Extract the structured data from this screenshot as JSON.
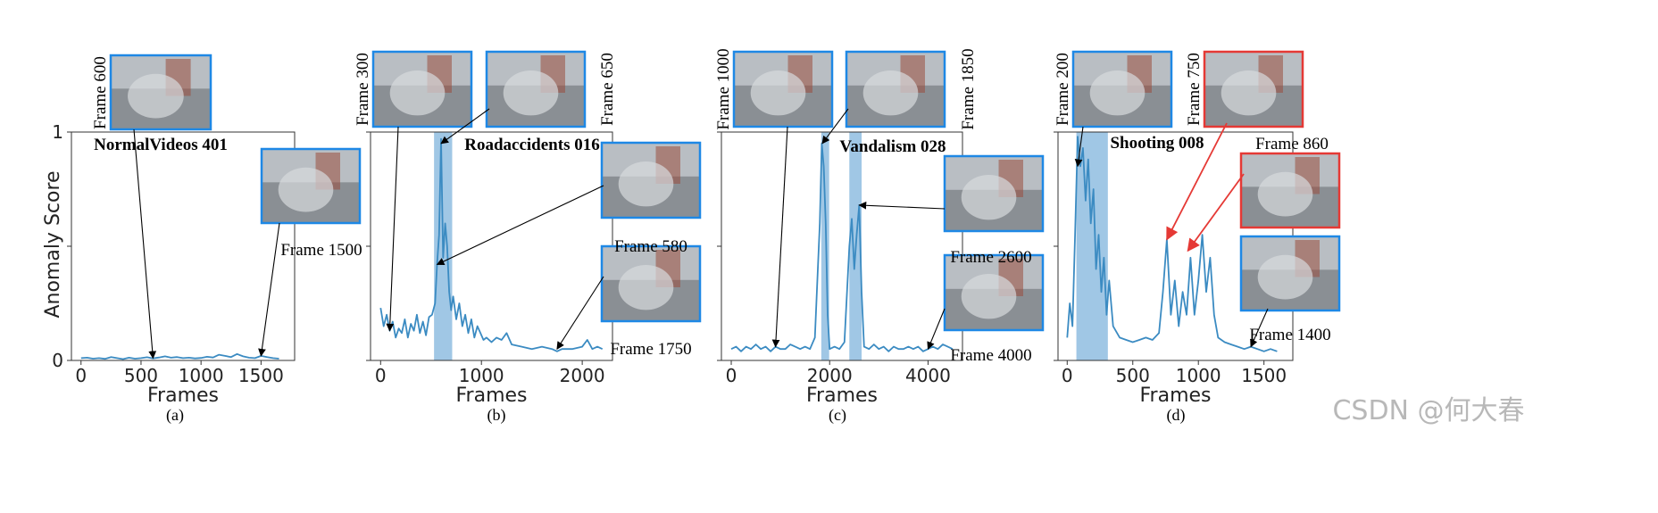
{
  "y_axis_label": "Anomaly Score",
  "watermark": "CSDN @何大春",
  "colors": {
    "line": "#3b8bc2",
    "band": "#8fbde0",
    "thumb_blue": "#1e88e5",
    "thumb_red": "#e53935",
    "arrow_black": "#000000",
    "arrow_red": "#e53935"
  },
  "chart_data": [
    {
      "type": "line",
      "panel": "(a)",
      "title": "NormalVideos 401",
      "xlabel": "Frames",
      "ylabel": "Anomaly Score",
      "xlim": [
        -80,
        1780
      ],
      "ylim": [
        0,
        1
      ],
      "xticks": [
        0,
        500,
        1000,
        1500
      ],
      "yticks": [
        0,
        0.5,
        1
      ],
      "ytick_labels": [
        "0",
        "",
        "1"
      ],
      "anomaly_ranges": [],
      "x": [
        0,
        50,
        100,
        150,
        200,
        250,
        300,
        350,
        400,
        450,
        500,
        550,
        600,
        650,
        700,
        750,
        800,
        850,
        900,
        950,
        1000,
        1050,
        1100,
        1150,
        1200,
        1250,
        1300,
        1350,
        1400,
        1450,
        1500,
        1550,
        1600,
        1650
      ],
      "y": [
        0.01,
        0.012,
        0.008,
        0.01,
        0.007,
        0.015,
        0.01,
        0.006,
        0.012,
        0.008,
        0.01,
        0.014,
        0.009,
        0.013,
        0.018,
        0.012,
        0.015,
        0.01,
        0.012,
        0.009,
        0.011,
        0.016,
        0.013,
        0.025,
        0.02,
        0.015,
        0.028,
        0.018,
        0.012,
        0.01,
        0.02,
        0.015,
        0.01,
        0.008
      ],
      "annotations": [
        {
          "label": "Frame 600",
          "frame": 600,
          "score": 0.01,
          "border": "blue"
        },
        {
          "label": "Frame 1500",
          "frame": 1500,
          "score": 0.02,
          "border": "blue"
        }
      ]
    },
    {
      "type": "line",
      "panel": "(b)",
      "title": "Roadaccidents 016",
      "xlabel": "Frames",
      "ylabel": "",
      "xlim": [
        -100,
        2300
      ],
      "ylim": [
        0,
        1
      ],
      "xticks": [
        0,
        1000,
        2000
      ],
      "yticks": [
        0,
        0.5,
        1
      ],
      "ytick_labels": [
        "",
        "",
        ""
      ],
      "anomaly_ranges": [
        [
          530,
          710
        ]
      ],
      "x": [
        0,
        30,
        60,
        90,
        120,
        150,
        180,
        210,
        240,
        270,
        300,
        330,
        360,
        390,
        420,
        450,
        480,
        510,
        540,
        560,
        580,
        600,
        620,
        640,
        660,
        680,
        700,
        720,
        750,
        780,
        810,
        840,
        870,
        900,
        930,
        960,
        990,
        1020,
        1050,
        1100,
        1150,
        1200,
        1250,
        1300,
        1400,
        1500,
        1600,
        1700,
        1750,
        1800,
        1900,
        2000,
        2050,
        2100,
        2150,
        2200
      ],
      "y": [
        0.23,
        0.15,
        0.2,
        0.13,
        0.17,
        0.1,
        0.14,
        0.12,
        0.18,
        0.1,
        0.16,
        0.13,
        0.2,
        0.12,
        0.17,
        0.11,
        0.19,
        0.2,
        0.25,
        0.42,
        0.55,
        0.97,
        0.45,
        0.6,
        0.5,
        0.3,
        0.22,
        0.28,
        0.18,
        0.25,
        0.15,
        0.2,
        0.12,
        0.18,
        0.1,
        0.15,
        0.12,
        0.09,
        0.1,
        0.08,
        0.1,
        0.09,
        0.12,
        0.07,
        0.06,
        0.05,
        0.06,
        0.05,
        0.04,
        0.05,
        0.05,
        0.06,
        0.09,
        0.05,
        0.06,
        0.05
      ],
      "annotations": [
        {
          "label": "Frame 300",
          "frame": 90,
          "score": 0.13,
          "border": "blue"
        },
        {
          "label": "Frame 650",
          "frame": 600,
          "score": 0.95,
          "border": "blue"
        },
        {
          "label": "Frame 580",
          "frame": 560,
          "score": 0.42,
          "border": "blue"
        },
        {
          "label": "Frame 1750",
          "frame": 1750,
          "score": 0.05,
          "border": "blue"
        }
      ]
    },
    {
      "type": "line",
      "panel": "(c)",
      "title": "Vandalism 028",
      "xlabel": "Frames",
      "ylabel": "",
      "xlim": [
        -200,
        4700
      ],
      "ylim": [
        0,
        1
      ],
      "xticks": [
        0,
        2000,
        4000
      ],
      "yticks": [
        0,
        0.5,
        1
      ],
      "ytick_labels": [
        "",
        "",
        ""
      ],
      "anomaly_ranges": [
        [
          1830,
          1990
        ],
        [
          2400,
          2650
        ]
      ],
      "x": [
        0,
        100,
        200,
        300,
        400,
        500,
        600,
        700,
        800,
        900,
        1000,
        1100,
        1200,
        1300,
        1400,
        1500,
        1600,
        1700,
        1800,
        1840,
        1880,
        1920,
        1960,
        2000,
        2100,
        2200,
        2300,
        2400,
        2450,
        2500,
        2550,
        2600,
        2650,
        2700,
        2800,
        2900,
        3000,
        3100,
        3200,
        3300,
        3400,
        3500,
        3600,
        3700,
        3800,
        3900,
        4000,
        4100,
        4200,
        4300,
        4400,
        4500
      ],
      "y": [
        0.05,
        0.06,
        0.04,
        0.06,
        0.05,
        0.07,
        0.05,
        0.06,
        0.04,
        0.06,
        0.05,
        0.05,
        0.07,
        0.06,
        0.05,
        0.06,
        0.05,
        0.1,
        0.6,
        0.95,
        0.85,
        0.6,
        0.2,
        0.05,
        0.06,
        0.05,
        0.08,
        0.5,
        0.62,
        0.4,
        0.55,
        0.68,
        0.3,
        0.06,
        0.05,
        0.07,
        0.05,
        0.06,
        0.04,
        0.06,
        0.05,
        0.05,
        0.06,
        0.05,
        0.06,
        0.04,
        0.05,
        0.06,
        0.05,
        0.07,
        0.06,
        0.05
      ],
      "annotations": [
        {
          "label": "Frame 1000",
          "frame": 900,
          "score": 0.06,
          "border": "blue"
        },
        {
          "label": "Frame 1850",
          "frame": 1850,
          "score": 0.95,
          "border": "blue"
        },
        {
          "label": "Frame 2600",
          "frame": 2600,
          "score": 0.68,
          "border": "blue"
        },
        {
          "label": "Frame 4000",
          "frame": 4000,
          "score": 0.05,
          "border": "blue"
        }
      ]
    },
    {
      "type": "line",
      "panel": "(d)",
      "title": "Shooting 008",
      "xlabel": "Frames",
      "ylabel": "",
      "xlim": [
        -70,
        1720
      ],
      "ylim": [
        0,
        1
      ],
      "xticks": [
        0,
        500,
        1000,
        1500
      ],
      "yticks": [
        0,
        0.5,
        1
      ],
      "ytick_labels": [
        "",
        "",
        ""
      ],
      "anomaly_ranges": [
        [
          70,
          310
        ]
      ],
      "x": [
        0,
        20,
        40,
        60,
        80,
        100,
        120,
        140,
        160,
        180,
        200,
        220,
        240,
        260,
        280,
        300,
        320,
        350,
        400,
        450,
        500,
        550,
        600,
        650,
        700,
        730,
        760,
        790,
        820,
        850,
        880,
        910,
        940,
        970,
        1000,
        1030,
        1060,
        1090,
        1120,
        1150,
        1200,
        1250,
        1300,
        1350,
        1400,
        1450,
        1500,
        1550,
        1600
      ],
      "y": [
        0.1,
        0.25,
        0.15,
        0.55,
        0.98,
        0.85,
        0.93,
        0.7,
        0.88,
        0.6,
        0.75,
        0.4,
        0.55,
        0.3,
        0.45,
        0.2,
        0.35,
        0.15,
        0.1,
        0.09,
        0.08,
        0.09,
        0.1,
        0.09,
        0.12,
        0.3,
        0.53,
        0.2,
        0.35,
        0.15,
        0.3,
        0.2,
        0.45,
        0.2,
        0.35,
        0.55,
        0.3,
        0.45,
        0.2,
        0.1,
        0.08,
        0.07,
        0.06,
        0.05,
        0.06,
        0.05,
        0.04,
        0.05,
        0.04
      ],
      "annotations": [
        {
          "label": "Frame 200",
          "frame": 80,
          "score": 0.85,
          "border": "blue"
        },
        {
          "label": "Frame 750",
          "frame": 760,
          "score": 0.53,
          "border": "red"
        },
        {
          "label": "Frame 860",
          "frame": 920,
          "score": 0.48,
          "border": "red"
        },
        {
          "label": "Frame 1400",
          "frame": 1400,
          "score": 0.06,
          "border": "blue"
        }
      ]
    }
  ]
}
